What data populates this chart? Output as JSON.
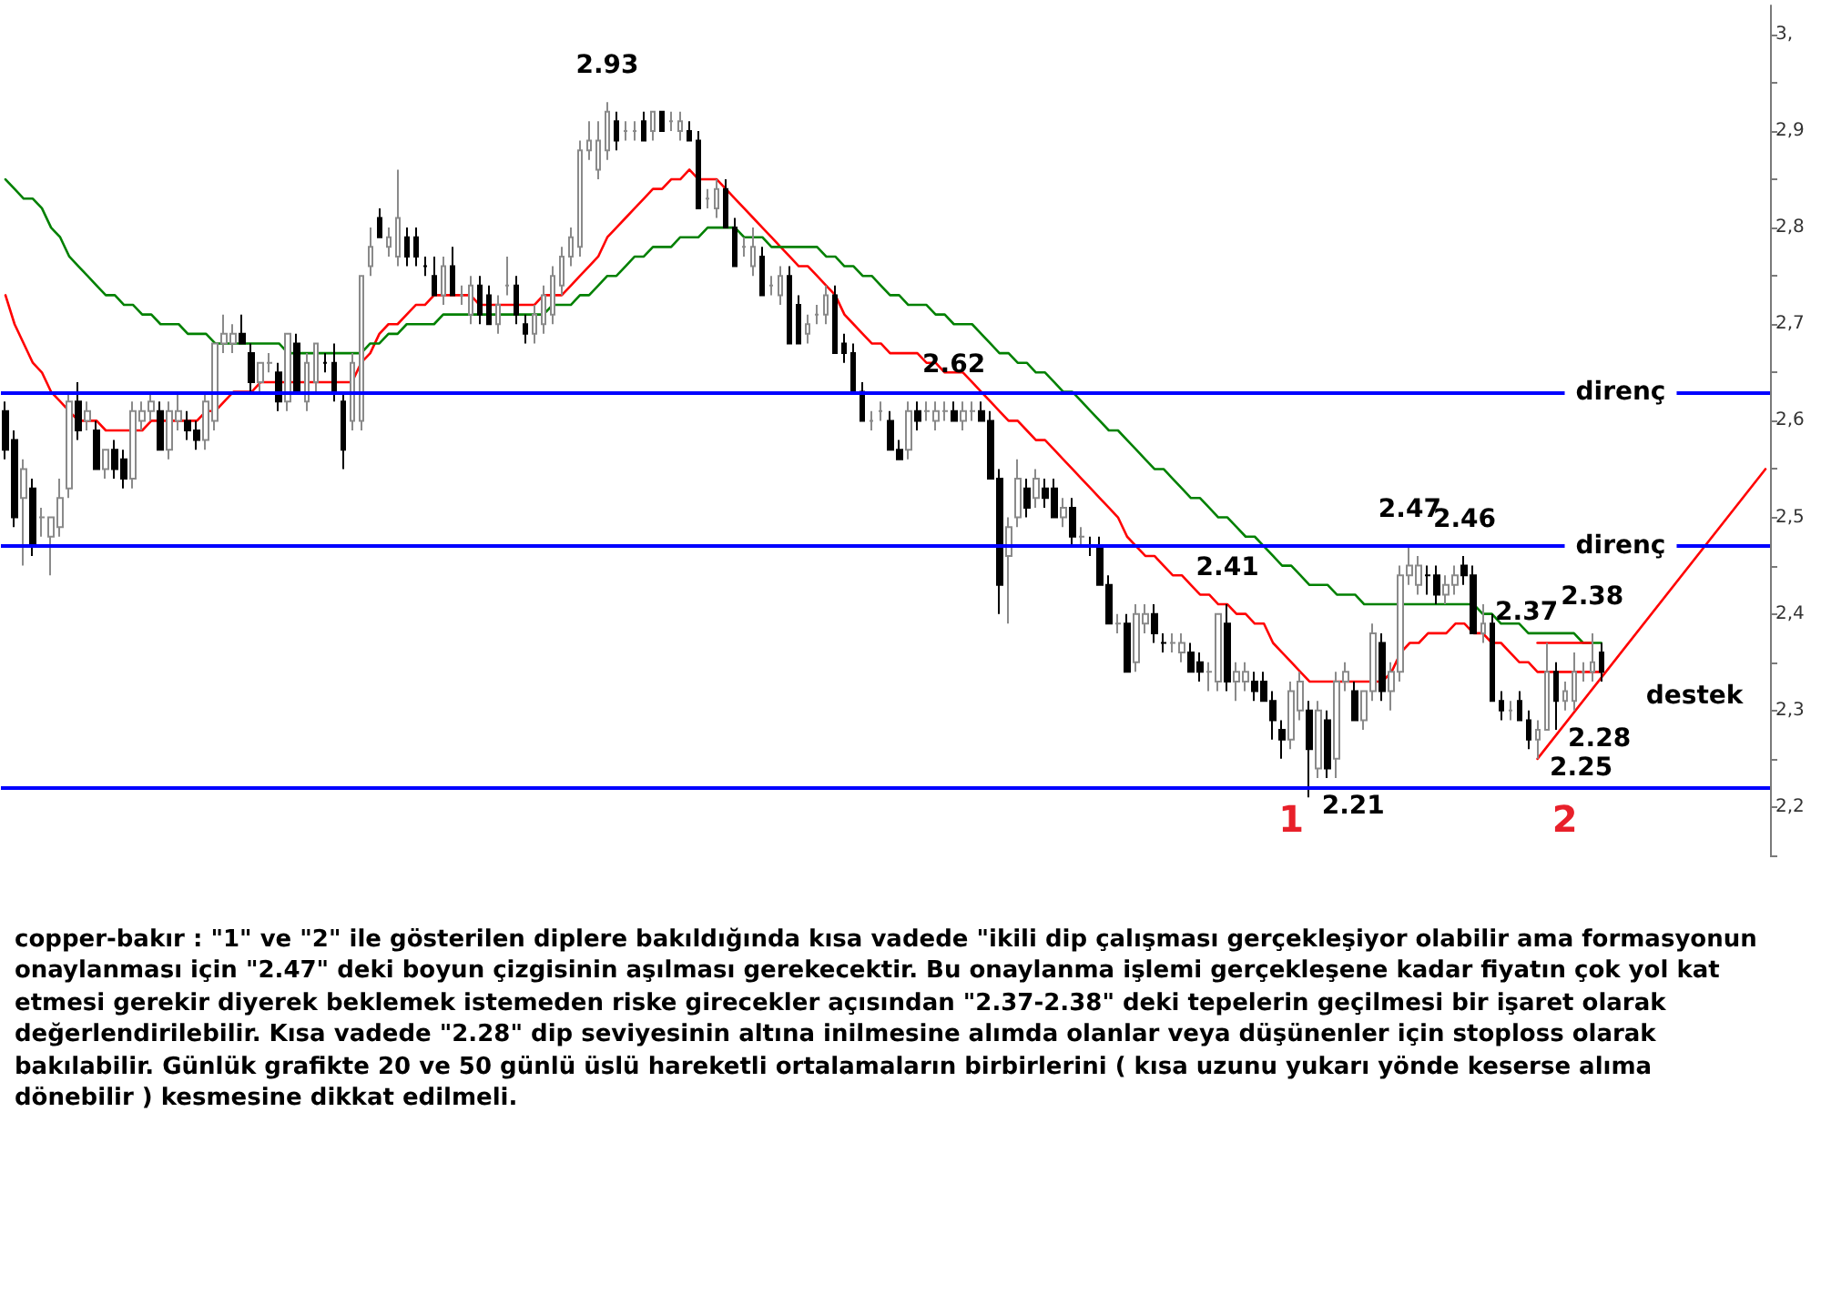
{
  "chart_data": {
    "type": "candlestick",
    "categories": [
      null,
      null,
      null,
      null,
      null,
      null,
      null,
      null,
      null,
      null,
      null,
      null,
      null,
      null,
      null,
      null,
      null,
      null,
      null,
      null,
      null,
      null,
      null,
      null,
      null,
      null,
      null,
      null,
      null,
      null,
      null,
      null,
      null,
      null,
      null,
      null,
      null,
      null,
      null,
      null,
      null,
      null,
      null,
      null,
      null,
      null,
      null,
      null,
      null,
      null,
      null,
      null,
      null,
      null,
      null,
      null,
      null,
      null,
      null,
      null,
      null,
      null,
      null,
      null,
      null,
      null,
      null,
      null,
      null,
      null,
      null,
      null,
      null,
      null,
      null,
      null,
      null,
      null,
      null,
      null,
      null,
      null,
      null,
      null,
      null,
      null,
      null,
      null,
      null,
      null,
      null,
      null,
      null,
      null,
      null,
      null,
      null,
      null,
      null,
      null,
      null,
      null,
      null,
      null,
      null,
      null,
      null,
      null,
      null,
      null,
      null,
      null,
      null,
      null,
      null,
      null,
      null,
      null,
      null,
      null,
      null,
      null,
      null,
      null,
      null,
      null,
      null,
      null,
      null,
      null,
      null,
      null,
      null,
      null,
      null,
      null,
      null,
      null,
      null,
      null,
      null,
      null,
      null,
      null,
      null,
      null,
      null,
      null,
      null,
      null,
      null,
      null,
      null,
      null,
      null,
      null,
      null,
      null,
      null,
      null,
      null,
      null,
      null,
      null,
      null,
      null,
      null,
      null,
      null,
      null,
      null,
      null,
      null,
      null,
      null,
      null,
      null,
      null,
      null,
      null,
      null,
      null,
      null,
      null,
      null,
      null,
      null,
      null,
      null,
      null,
      null,
      null,
      null,
      null
    ],
    "ohlc": [
      [
        2.61,
        2.62,
        2.56,
        2.57
      ],
      [
        2.58,
        2.59,
        2.49,
        2.5
      ],
      [
        2.52,
        2.56,
        2.45,
        2.55
      ],
      [
        2.53,
        2.54,
        2.46,
        2.47
      ],
      [
        2.5,
        2.51,
        2.48,
        2.5
      ],
      [
        2.48,
        2.5,
        2.44,
        2.5
      ],
      [
        2.49,
        2.54,
        2.48,
        2.52
      ],
      [
        2.53,
        2.63,
        2.52,
        2.62
      ],
      [
        2.62,
        2.64,
        2.58,
        2.59
      ],
      [
        2.6,
        2.62,
        2.59,
        2.61
      ],
      [
        2.59,
        2.6,
        2.55,
        2.55
      ],
      [
        2.55,
        2.57,
        2.54,
        2.57
      ],
      [
        2.57,
        2.58,
        2.54,
        2.55
      ],
      [
        2.56,
        2.57,
        2.53,
        2.54
      ],
      [
        2.54,
        2.62,
        2.53,
        2.61
      ],
      [
        2.6,
        2.62,
        2.59,
        2.61
      ],
      [
        2.61,
        2.63,
        2.6,
        2.62
      ],
      [
        2.61,
        2.62,
        2.57,
        2.57
      ],
      [
        2.57,
        2.62,
        2.56,
        2.61
      ],
      [
        2.6,
        2.63,
        2.59,
        2.61
      ],
      [
        2.6,
        2.61,
        2.58,
        2.59
      ],
      [
        2.59,
        2.6,
        2.57,
        2.58
      ],
      [
        2.58,
        2.63,
        2.57,
        2.62
      ],
      [
        2.6,
        2.68,
        2.59,
        2.68
      ],
      [
        2.68,
        2.71,
        2.67,
        2.69
      ],
      [
        2.68,
        2.7,
        2.67,
        2.69
      ],
      [
        2.69,
        2.71,
        2.68,
        2.68
      ],
      [
        2.67,
        2.68,
        2.63,
        2.64
      ],
      [
        2.64,
        2.66,
        2.63,
        2.66
      ],
      [
        2.66,
        2.67,
        2.65,
        2.66
      ],
      [
        2.65,
        2.66,
        2.61,
        2.62
      ],
      [
        2.62,
        2.69,
        2.61,
        2.69
      ],
      [
        2.68,
        2.69,
        2.63,
        2.63
      ],
      [
        2.62,
        2.67,
        2.61,
        2.66
      ],
      [
        2.64,
        2.68,
        2.63,
        2.68
      ],
      [
        2.66,
        2.67,
        2.65,
        2.66
      ],
      [
        2.66,
        2.68,
        2.62,
        2.63
      ],
      [
        2.62,
        2.63,
        2.55,
        2.57
      ],
      [
        2.6,
        2.67,
        2.59,
        2.66
      ],
      [
        2.6,
        2.75,
        2.59,
        2.75
      ],
      [
        2.76,
        2.8,
        2.75,
        2.78
      ],
      [
        2.81,
        2.82,
        2.79,
        2.79
      ],
      [
        2.78,
        2.8,
        2.77,
        2.79
      ],
      [
        2.77,
        2.86,
        2.76,
        2.81
      ],
      [
        2.79,
        2.8,
        2.76,
        2.77
      ],
      [
        2.79,
        2.8,
        2.76,
        2.77
      ],
      [
        2.76,
        2.77,
        2.75,
        2.76
      ],
      [
        2.75,
        2.77,
        2.73,
        2.73
      ],
      [
        2.73,
        2.77,
        2.72,
        2.76
      ],
      [
        2.76,
        2.78,
        2.73,
        2.73
      ],
      [
        2.73,
        2.74,
        2.72,
        2.73
      ],
      [
        2.71,
        2.75,
        2.7,
        2.74
      ],
      [
        2.74,
        2.75,
        2.7,
        2.71
      ],
      [
        2.73,
        2.74,
        2.7,
        2.7
      ],
      [
        2.7,
        2.73,
        2.69,
        2.72
      ],
      [
        2.74,
        2.77,
        2.73,
        2.74
      ],
      [
        2.74,
        2.75,
        2.7,
        2.71
      ],
      [
        2.7,
        2.71,
        2.68,
        2.69
      ],
      [
        2.69,
        2.72,
        2.68,
        2.71
      ],
      [
        2.7,
        2.74,
        2.69,
        2.73
      ],
      [
        2.71,
        2.76,
        2.7,
        2.75
      ],
      [
        2.74,
        2.78,
        2.73,
        2.77
      ],
      [
        2.77,
        2.8,
        2.76,
        2.79
      ],
      [
        2.78,
        2.89,
        2.77,
        2.88
      ],
      [
        2.88,
        2.91,
        2.87,
        2.89
      ],
      [
        2.86,
        2.91,
        2.85,
        2.89
      ],
      [
        2.88,
        2.93,
        2.87,
        2.92
      ],
      [
        2.91,
        2.92,
        2.88,
        2.89
      ],
      [
        2.9,
        2.91,
        2.89,
        2.9
      ],
      [
        2.9,
        2.91,
        2.89,
        2.9
      ],
      [
        2.91,
        2.92,
        2.89,
        2.89
      ],
      [
        2.9,
        2.92,
        2.89,
        2.92
      ],
      [
        2.92,
        2.92,
        2.9,
        2.9
      ],
      [
        2.91,
        2.92,
        2.9,
        2.91
      ],
      [
        2.9,
        2.92,
        2.89,
        2.91
      ],
      [
        2.9,
        2.91,
        2.89,
        2.89
      ],
      [
        2.89,
        2.9,
        2.82,
        2.82
      ],
      [
        2.83,
        2.84,
        2.82,
        2.83
      ],
      [
        2.82,
        2.85,
        2.81,
        2.84
      ],
      [
        2.84,
        2.85,
        2.8,
        2.8
      ],
      [
        2.8,
        2.81,
        2.76,
        2.76
      ],
      [
        2.78,
        2.79,
        2.77,
        2.78
      ],
      [
        2.76,
        2.8,
        2.75,
        2.78
      ],
      [
        2.77,
        2.78,
        2.73,
        2.73
      ],
      [
        2.74,
        2.75,
        2.73,
        2.74
      ],
      [
        2.73,
        2.76,
        2.72,
        2.75
      ],
      [
        2.75,
        2.76,
        2.68,
        2.68
      ],
      [
        2.72,
        2.73,
        2.68,
        2.68
      ],
      [
        2.69,
        2.71,
        2.68,
        2.7
      ],
      [
        2.71,
        2.72,
        2.7,
        2.71
      ],
      [
        2.71,
        2.74,
        2.7,
        2.73
      ],
      [
        2.73,
        2.74,
        2.67,
        2.67
      ],
      [
        2.68,
        2.69,
        2.66,
        2.67
      ],
      [
        2.67,
        2.68,
        2.63,
        2.63
      ],
      [
        2.63,
        2.64,
        2.6,
        2.6
      ],
      [
        2.6,
        2.61,
        2.59,
        2.6
      ],
      [
        2.61,
        2.62,
        2.6,
        2.61
      ],
      [
        2.6,
        2.61,
        2.57,
        2.57
      ],
      [
        2.57,
        2.58,
        2.56,
        2.56
      ],
      [
        2.57,
        2.62,
        2.56,
        2.61
      ],
      [
        2.61,
        2.62,
        2.59,
        2.6
      ],
      [
        2.61,
        2.62,
        2.6,
        2.61
      ],
      [
        2.6,
        2.62,
        2.59,
        2.61
      ],
      [
        2.61,
        2.62,
        2.6,
        2.61
      ],
      [
        2.61,
        2.62,
        2.6,
        2.6
      ],
      [
        2.6,
        2.62,
        2.59,
        2.61
      ],
      [
        2.61,
        2.62,
        2.6,
        2.61
      ],
      [
        2.61,
        2.62,
        2.6,
        2.6
      ],
      [
        2.6,
        2.61,
        2.54,
        2.54
      ],
      [
        2.54,
        2.55,
        2.4,
        2.43
      ],
      [
        2.46,
        2.5,
        2.39,
        2.49
      ],
      [
        2.5,
        2.56,
        2.49,
        2.54
      ],
      [
        2.53,
        2.54,
        2.5,
        2.51
      ],
      [
        2.52,
        2.55,
        2.51,
        2.54
      ],
      [
        2.53,
        2.54,
        2.51,
        2.52
      ],
      [
        2.53,
        2.54,
        2.5,
        2.5
      ],
      [
        2.5,
        2.52,
        2.49,
        2.51
      ],
      [
        2.51,
        2.52,
        2.47,
        2.48
      ],
      [
        2.48,
        2.49,
        2.47,
        2.48
      ],
      [
        2.47,
        2.48,
        2.46,
        2.47
      ],
      [
        2.47,
        2.48,
        2.43,
        2.43
      ],
      [
        2.43,
        2.44,
        2.39,
        2.39
      ],
      [
        2.39,
        2.4,
        2.38,
        2.39
      ],
      [
        2.39,
        2.4,
        2.34,
        2.34
      ],
      [
        2.35,
        2.41,
        2.34,
        2.4
      ],
      [
        2.39,
        2.41,
        2.38,
        2.4
      ],
      [
        2.4,
        2.41,
        2.37,
        2.38
      ],
      [
        2.37,
        2.38,
        2.36,
        2.37
      ],
      [
        2.37,
        2.38,
        2.36,
        2.37
      ],
      [
        2.36,
        2.38,
        2.35,
        2.37
      ],
      [
        2.36,
        2.37,
        2.34,
        2.34
      ],
      [
        2.35,
        2.36,
        2.33,
        2.34
      ],
      [
        2.34,
        2.35,
        2.32,
        2.34
      ],
      [
        2.33,
        2.4,
        2.32,
        2.4
      ],
      [
        2.39,
        2.41,
        2.32,
        2.33
      ],
      [
        2.33,
        2.35,
        2.31,
        2.34
      ],
      [
        2.33,
        2.35,
        2.32,
        2.34
      ],
      [
        2.33,
        2.34,
        2.31,
        2.32
      ],
      [
        2.33,
        2.34,
        2.31,
        2.31
      ],
      [
        2.31,
        2.32,
        2.27,
        2.29
      ],
      [
        2.28,
        2.29,
        2.25,
        2.27
      ],
      [
        2.27,
        2.33,
        2.26,
        2.32
      ],
      [
        2.3,
        2.34,
        2.29,
        2.33
      ],
      [
        2.3,
        2.31,
        2.21,
        2.26
      ],
      [
        2.24,
        2.31,
        2.23,
        2.3
      ],
      [
        2.29,
        2.3,
        2.23,
        2.24
      ],
      [
        2.25,
        2.34,
        2.23,
        2.33
      ],
      [
        2.33,
        2.35,
        2.32,
        2.34
      ],
      [
        2.32,
        2.33,
        2.29,
        2.29
      ],
      [
        2.29,
        2.32,
        2.28,
        2.32
      ],
      [
        2.32,
        2.39,
        2.31,
        2.38
      ],
      [
        2.37,
        2.38,
        2.31,
        2.32
      ],
      [
        2.32,
        2.35,
        2.3,
        2.34
      ],
      [
        2.34,
        2.45,
        2.33,
        2.44
      ],
      [
        2.44,
        2.47,
        2.43,
        2.45
      ],
      [
        2.43,
        2.46,
        2.42,
        2.45
      ],
      [
        2.44,
        2.45,
        2.42,
        2.44
      ],
      [
        2.44,
        2.45,
        2.41,
        2.42
      ],
      [
        2.42,
        2.44,
        2.41,
        2.43
      ],
      [
        2.43,
        2.45,
        2.42,
        2.44
      ],
      [
        2.45,
        2.46,
        2.43,
        2.44
      ],
      [
        2.44,
        2.45,
        2.38,
        2.38
      ],
      [
        2.38,
        2.41,
        2.37,
        2.39
      ],
      [
        2.39,
        2.4,
        2.31,
        2.31
      ],
      [
        2.31,
        2.32,
        2.29,
        2.3
      ],
      [
        2.3,
        2.31,
        2.29,
        2.3
      ],
      [
        2.31,
        2.32,
        2.29,
        2.29
      ],
      [
        2.29,
        2.3,
        2.26,
        2.27
      ],
      [
        2.27,
        2.29,
        2.25,
        2.28
      ],
      [
        2.28,
        2.37,
        2.28,
        2.34
      ],
      [
        2.34,
        2.35,
        2.28,
        2.31
      ],
      [
        2.31,
        2.33,
        2.3,
        2.32
      ],
      [
        2.31,
        2.36,
        2.3,
        2.34
      ],
      [
        2.34,
        2.35,
        2.33,
        2.34
      ],
      [
        2.34,
        2.38,
        2.33,
        2.35
      ],
      [
        2.36,
        2.37,
        2.33,
        2.34
      ],
      null,
      null,
      null,
      null,
      null,
      null,
      null,
      null,
      null,
      null,
      null,
      null,
      null,
      null,
      null,
      null,
      null,
      null
    ],
    "value_labels": [
      null,
      null,
      null,
      null,
      null,
      null,
      null,
      null,
      null,
      null,
      null,
      null,
      null,
      null,
      null,
      null,
      null,
      null,
      null,
      null,
      null,
      null,
      null,
      null,
      null,
      null,
      null,
      null,
      null,
      null,
      null,
      null,
      null,
      null,
      null,
      null,
      null,
      null,
      null,
      null,
      null,
      null,
      null,
      null,
      null,
      null,
      null,
      null,
      null,
      null,
      null,
      null,
      null,
      null,
      null,
      null,
      null,
      null,
      null,
      null,
      null,
      null,
      null,
      null,
      null,
      null,
      "2.93",
      null,
      null,
      null,
      null,
      null,
      null,
      null,
      null,
      null,
      null,
      null,
      null,
      null,
      null,
      null,
      null,
      null,
      null,
      null,
      null,
      null,
      null,
      null,
      null,
      null,
      null,
      null,
      null,
      null,
      null,
      null,
      null,
      null,
      null,
      null,
      null,
      null,
      "2.62",
      null,
      null,
      null,
      null,
      null,
      null,
      null,
      null,
      null,
      null,
      null,
      null,
      null,
      null,
      null,
      null,
      null,
      null,
      null,
      null,
      null,
      null,
      null,
      null,
      null,
      null,
      null,
      null,
      null,
      "2.41",
      null,
      null,
      null,
      null,
      null,
      null,
      "1",
      null,
      "2.21",
      null,
      null,
      null,
      null,
      null,
      null,
      null,
      null,
      null,
      null,
      "2.47",
      null,
      null,
      null,
      null,
      null,
      "2.46",
      null,
      null,
      null,
      null,
      null,
      null,
      null,
      "2.25",
      null,
      "2.28",
      "2",
      null,
      null,
      "2.38",
      null,
      null,
      null,
      null,
      null,
      null,
      null,
      null,
      null,
      null,
      null,
      null,
      null,
      null,
      null,
      null,
      null,
      null,
      null
    ],
    "ylim": [
      2.15,
      3.03
    ],
    "yticks": [
      {
        "value": 2.15,
        "label": null
      },
      {
        "value": 2.2,
        "label": "2,2"
      },
      {
        "value": 2.25,
        "label": null
      },
      {
        "value": 2.3,
        "label": "2,3"
      },
      {
        "value": 2.35,
        "label": null
      },
      {
        "value": 2.4,
        "label": "2,4"
      },
      {
        "value": 2.45,
        "label": null
      },
      {
        "value": 2.5,
        "label": "2,5"
      },
      {
        "value": 2.55,
        "label": null
      },
      {
        "value": 2.6,
        "label": "2,6"
      },
      {
        "value": 2.65,
        "label": null
      },
      {
        "value": 2.7,
        "label": "2,7"
      },
      {
        "value": 2.75,
        "label": null
      },
      {
        "value": 2.8,
        "label": "2,8"
      },
      {
        "value": 2.85,
        "label": null
      },
      {
        "value": 2.9,
        "label": "2,9"
      },
      {
        "value": 2.95,
        "label": null
      },
      {
        "value": 3.0,
        "label": "3,"
      }
    ],
    "marker": "none",
    "series": [
      {
        "type": "line",
        "color": "#ff0000",
        "values": [
          2.73,
          2.7,
          2.68,
          2.66,
          2.65,
          2.63,
          2.62,
          2.61,
          2.6,
          2.6,
          2.6,
          2.59,
          2.59,
          2.59,
          2.59,
          2.59,
          2.6,
          2.6,
          2.6,
          2.6,
          2.6,
          2.6,
          2.61,
          2.61,
          2.62,
          2.63,
          2.63,
          2.63,
          2.64,
          2.64,
          2.64,
          2.64,
          2.64,
          2.64,
          2.64,
          2.64,
          2.64,
          2.64,
          2.64,
          2.66,
          2.67,
          2.69,
          2.7,
          2.7,
          2.71,
          2.72,
          2.72,
          2.73,
          2.73,
          2.73,
          2.73,
          2.73,
          2.72,
          2.72,
          2.72,
          2.72,
          2.72,
          2.72,
          2.72,
          2.73,
          2.73,
          2.73,
          2.74,
          2.75,
          2.76,
          2.77,
          2.79,
          2.8,
          2.81,
          2.82,
          2.83,
          2.84,
          2.84,
          2.85,
          2.85,
          2.86,
          2.85,
          2.85,
          2.85,
          2.84,
          2.83,
          2.82,
          2.81,
          2.8,
          2.79,
          2.78,
          2.77,
          2.76,
          2.76,
          2.75,
          2.74,
          2.73,
          2.71,
          2.7,
          2.69,
          2.68,
          2.68,
          2.67,
          2.67,
          2.67,
          2.67,
          2.66,
          2.66,
          2.65,
          2.65,
          2.65,
          2.64,
          2.63,
          2.62,
          2.61,
          2.6,
          2.6,
          2.59,
          2.58,
          2.58,
          2.57,
          2.56,
          2.55,
          2.54,
          2.53,
          2.52,
          2.51,
          2.5,
          2.48,
          2.47,
          2.46,
          2.46,
          2.45,
          2.44,
          2.44,
          2.43,
          2.42,
          2.42,
          2.41,
          2.41,
          2.4,
          2.4,
          2.39,
          2.39,
          2.37,
          2.36,
          2.35,
          2.34,
          2.33,
          2.33,
          2.33,
          2.33,
          2.33,
          2.33,
          2.33,
          2.33,
          2.33,
          2.34,
          2.36,
          2.37,
          2.37,
          2.38,
          2.38,
          2.38,
          2.39,
          2.39,
          2.38,
          2.38,
          2.37,
          2.37,
          2.36,
          2.35,
          2.35,
          2.34,
          2.34,
          2.34,
          2.34,
          2.34,
          2.34,
          2.34,
          2.34,
          null,
          null,
          null,
          null,
          null,
          null,
          null,
          null,
          null,
          null,
          null,
          null,
          null,
          null,
          null,
          null,
          null,
          null
        ]
      },
      {
        "type": "line",
        "color": "#008000",
        "values": [
          2.85,
          2.84,
          2.83,
          2.83,
          2.82,
          2.8,
          2.79,
          2.77,
          2.76,
          2.75,
          2.74,
          2.73,
          2.73,
          2.72,
          2.72,
          2.71,
          2.71,
          2.7,
          2.7,
          2.7,
          2.69,
          2.69,
          2.69,
          2.68,
          2.68,
          2.68,
          2.68,
          2.68,
          2.68,
          2.68,
          2.68,
          2.67,
          2.67,
          2.67,
          2.67,
          2.67,
          2.67,
          2.67,
          2.67,
          2.67,
          2.68,
          2.68,
          2.69,
          2.69,
          2.7,
          2.7,
          2.7,
          2.7,
          2.71,
          2.71,
          2.71,
          2.71,
          2.71,
          2.71,
          2.71,
          2.71,
          2.71,
          2.71,
          2.71,
          2.71,
          2.72,
          2.72,
          2.72,
          2.73,
          2.73,
          2.74,
          2.75,
          2.75,
          2.76,
          2.77,
          2.77,
          2.78,
          2.78,
          2.78,
          2.79,
          2.79,
          2.79,
          2.8,
          2.8,
          2.8,
          2.8,
          2.79,
          2.79,
          2.79,
          2.78,
          2.78,
          2.78,
          2.78,
          2.78,
          2.78,
          2.77,
          2.77,
          2.76,
          2.76,
          2.75,
          2.75,
          2.74,
          2.73,
          2.73,
          2.72,
          2.72,
          2.72,
          2.71,
          2.71,
          2.7,
          2.7,
          2.7,
          2.69,
          2.68,
          2.67,
          2.67,
          2.66,
          2.66,
          2.65,
          2.65,
          2.64,
          2.63,
          2.63,
          2.62,
          2.61,
          2.6,
          2.59,
          2.59,
          2.58,
          2.57,
          2.56,
          2.55,
          2.55,
          2.54,
          2.53,
          2.52,
          2.52,
          2.51,
          2.5,
          2.5,
          2.49,
          2.48,
          2.48,
          2.47,
          2.46,
          2.45,
          2.45,
          2.44,
          2.43,
          2.43,
          2.43,
          2.42,
          2.42,
          2.42,
          2.41,
          2.41,
          2.41,
          2.41,
          2.41,
          2.41,
          2.41,
          2.41,
          2.41,
          2.41,
          2.41,
          2.41,
          2.41,
          2.4,
          2.4,
          2.39,
          2.39,
          2.39,
          2.38,
          2.38,
          2.38,
          2.38,
          2.38,
          2.38,
          2.37,
          2.37,
          2.37,
          null,
          null,
          null,
          null,
          null,
          null,
          null,
          null,
          null,
          null,
          null,
          null,
          null,
          null,
          null,
          null,
          null,
          null
        ]
      },
      {
        "type": "line",
        "name": "destek",
        "color": "#ff0000",
        "values": [
          null,
          null,
          null,
          null,
          null,
          null,
          null,
          null,
          null,
          null,
          null,
          null,
          null,
          null,
          null,
          null,
          null,
          null,
          null,
          null,
          null,
          null,
          null,
          null,
          null,
          null,
          null,
          null,
          null,
          null,
          null,
          null,
          null,
          null,
          null,
          null,
          null,
          null,
          null,
          null,
          null,
          null,
          null,
          null,
          null,
          null,
          null,
          null,
          null,
          null,
          null,
          null,
          null,
          null,
          null,
          null,
          null,
          null,
          null,
          null,
          null,
          null,
          null,
          null,
          null,
          null,
          null,
          null,
          null,
          null,
          null,
          null,
          null,
          null,
          null,
          null,
          null,
          null,
          null,
          null,
          null,
          null,
          null,
          null,
          null,
          null,
          null,
          null,
          null,
          null,
          null,
          null,
          null,
          null,
          null,
          null,
          null,
          null,
          null,
          null,
          null,
          null,
          null,
          null,
          null,
          null,
          null,
          null,
          null,
          null,
          null,
          null,
          null,
          null,
          null,
          null,
          null,
          null,
          null,
          null,
          null,
          null,
          null,
          null,
          null,
          null,
          null,
          null,
          null,
          null,
          null,
          null,
          null,
          null,
          null,
          null,
          null,
          null,
          null,
          null,
          null,
          null,
          null,
          null,
          null,
          null,
          null,
          null,
          null,
          null,
          null,
          null,
          null,
          null,
          null,
          null,
          null,
          null,
          null,
          null,
          null,
          null,
          null,
          null,
          null,
          null,
          null,
          null,
          2.25,
          null,
          null,
          null,
          null,
          null,
          null,
          null,
          null,
          null,
          null,
          null,
          null,
          null,
          null,
          null,
          null,
          null,
          null,
          null,
          null,
          null,
          null,
          null,
          null,
          2.55
        ]
      },
      {
        "type": "line",
        "color": "#ff0000",
        "values": [
          null,
          null,
          null,
          null,
          null,
          null,
          null,
          null,
          null,
          null,
          null,
          null,
          null,
          null,
          null,
          null,
          null,
          null,
          null,
          null,
          null,
          null,
          null,
          null,
          null,
          null,
          null,
          null,
          null,
          null,
          null,
          null,
          null,
          null,
          null,
          null,
          null,
          null,
          null,
          null,
          null,
          null,
          null,
          null,
          null,
          null,
          null,
          null,
          null,
          null,
          null,
          null,
          null,
          null,
          null,
          null,
          null,
          null,
          null,
          null,
          null,
          null,
          null,
          null,
          null,
          null,
          null,
          null,
          null,
          null,
          null,
          null,
          null,
          null,
          null,
          null,
          null,
          null,
          null,
          null,
          null,
          null,
          null,
          null,
          null,
          null,
          null,
          null,
          null,
          null,
          null,
          null,
          null,
          null,
          null,
          null,
          null,
          null,
          null,
          null,
          null,
          null,
          null,
          null,
          null,
          null,
          null,
          null,
          null,
          null,
          null,
          null,
          null,
          null,
          null,
          null,
          null,
          null,
          null,
          null,
          null,
          null,
          null,
          null,
          null,
          null,
          null,
          null,
          null,
          null,
          null,
          null,
          null,
          null,
          null,
          null,
          null,
          null,
          null,
          null,
          null,
          null,
          null,
          null,
          null,
          null,
          null,
          null,
          null,
          null,
          null,
          null,
          null,
          null,
          null,
          null,
          null,
          null,
          null,
          null,
          null,
          null,
          null,
          null,
          null,
          null,
          null,
          null,
          2.37,
          2.37,
          2.37,
          2.37,
          2.37,
          2.37,
          2.37,
          null,
          null,
          null,
          null,
          null,
          null,
          null,
          null,
          null,
          null,
          null,
          null,
          null,
          null,
          null,
          null,
          null,
          null,
          null
        ],
        "value_labels": [
          null,
          null,
          null,
          null,
          null,
          null,
          null,
          null,
          null,
          null,
          null,
          null,
          null,
          null,
          null,
          null,
          null,
          null,
          null,
          null,
          null,
          null,
          null,
          null,
          null,
          null,
          null,
          null,
          null,
          null,
          null,
          null,
          null,
          null,
          null,
          null,
          null,
          null,
          null,
          null,
          null,
          null,
          null,
          null,
          null,
          null,
          null,
          null,
          null,
          null,
          null,
          null,
          null,
          null,
          null,
          null,
          null,
          null,
          null,
          null,
          null,
          null,
          null,
          null,
          null,
          null,
          null,
          null,
          null,
          null,
          null,
          null,
          null,
          null,
          null,
          null,
          null,
          null,
          null,
          null,
          null,
          null,
          null,
          null,
          null,
          null,
          null,
          null,
          null,
          null,
          null,
          null,
          null,
          null,
          null,
          null,
          null,
          null,
          null,
          null,
          null,
          null,
          null,
          null,
          null,
          null,
          null,
          null,
          null,
          null,
          null,
          null,
          null,
          null,
          null,
          null,
          null,
          null,
          null,
          null,
          null,
          null,
          null,
          null,
          null,
          null,
          null,
          null,
          null,
          null,
          null,
          null,
          null,
          null,
          null,
          null,
          null,
          null,
          null,
          null,
          null,
          null,
          null,
          null,
          null,
          null,
          null,
          null,
          null,
          null,
          null,
          null,
          null,
          null,
          null,
          null,
          null,
          null,
          null,
          null,
          null,
          null,
          null,
          null,
          null,
          null,
          null,
          null,
          "2.37",
          null,
          null,
          null,
          null,
          null,
          null,
          null,
          null,
          null,
          null,
          null,
          null,
          null,
          null,
          null,
          null,
          null,
          null,
          null,
          null,
          null,
          null,
          null,
          null,
          null
        ]
      }
    ],
    "ref_lines": [
      {
        "axis": "y",
        "value": 2.63,
        "label": "direnç",
        "color": "#0000ff"
      },
      {
        "axis": "y",
        "value": 2.47,
        "label": "direnç",
        "color": "#0000ff"
      },
      {
        "axis": "y",
        "value": 2.22,
        "label": null,
        "color": "#0000ff"
      }
    ],
    "annotations": [
      "copper-bakır : \"1\" ve \"2\" ile gösterilen diplere bakıldığında kısa vadede \"ikili dip çalışması gerçekleşiyor olabilir ama formasyonun onaylanması için \"2.47\" deki boyun çizgisinin aşılması gerekecektir. Bu onaylanma işlemi gerçekleşene kadar fiyatın çok yol kat etmesi gerekir diyerek beklemek istemeden riske girecekler açısından \"2.37-2.38\" deki tepelerin geçilmesi bir işaret olarak değerlendirilebilir. Kısa vadede \"2.28\" dip seviyesinin altına inilmesine alımda olanlar veya düşünenler için stoploss olarak bakılabilir. Günlük grafikte 20 ve 50 günlü üslü hareketli ortalamaların birbirlerini ( kısa uzunu yukarı yönde keserse alıma dönebilir ) kesmesine dikkat edilmeli."
    ]
  }
}
